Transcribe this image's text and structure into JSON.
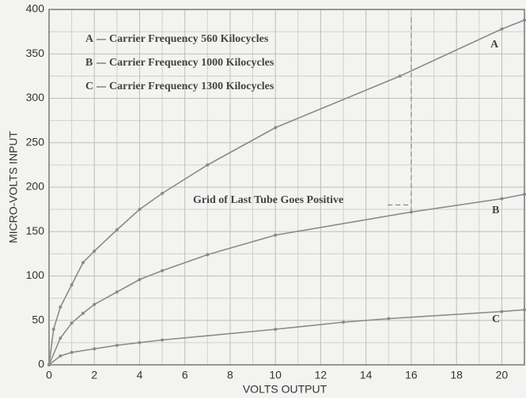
{
  "chart_data": {
    "type": "line",
    "xlabel": "VOLTS OUTPUT",
    "ylabel": "MICRO-VOLTS INPUT",
    "xlim": [
      0,
      21
    ],
    "ylim": [
      0,
      400
    ],
    "xticks": [
      0,
      2,
      4,
      6,
      8,
      10,
      12,
      14,
      16,
      18,
      20
    ],
    "yticks": [
      0,
      50,
      100,
      150,
      200,
      250,
      300,
      350,
      400
    ],
    "grid": true,
    "minor_grid": true,
    "series": [
      {
        "name": "A",
        "legend": "Carrier Frequency 560 Kilocycles",
        "color": "#8a8a8a",
        "x": [
          0,
          0.2,
          0.5,
          1,
          1.5,
          2,
          3,
          4,
          5,
          7,
          10,
          15.5,
          20,
          21
        ],
        "values": [
          0,
          40,
          65,
          90,
          115,
          128,
          152,
          175,
          193,
          225,
          267,
          325,
          378,
          388
        ]
      },
      {
        "name": "B",
        "legend": "Carrier Frequency 1000 Kilocycles",
        "color": "#8a8a8a",
        "x": [
          0,
          0.5,
          1,
          1.5,
          2,
          3,
          4,
          5,
          7,
          10,
          16,
          20,
          21
        ],
        "values": [
          0,
          30,
          47,
          58,
          68,
          82,
          96,
          106,
          124,
          146,
          172,
          187,
          192
        ]
      },
      {
        "name": "C",
        "legend": "Carrier Frequency 1300 Kilocycles",
        "color": "#8a8a8a",
        "x": [
          0,
          0.5,
          1,
          2,
          3,
          4,
          5,
          10,
          13,
          15,
          20,
          21
        ],
        "values": [
          0,
          10,
          14,
          18,
          22,
          25,
          28,
          40,
          48,
          52,
          60,
          62
        ]
      }
    ],
    "annotation": {
      "text": "Grid of Last Tube Goes Positive",
      "x": 16
    }
  }
}
